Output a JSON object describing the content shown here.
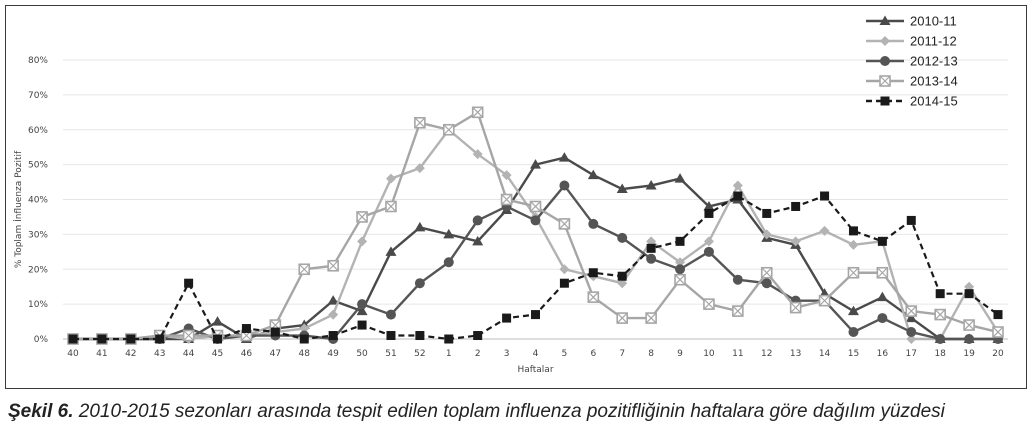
{
  "caption": {
    "label": "Şekil 6.",
    "text": " 2010-2015 sezonları arasında tespit edilen toplam influenza pozitifliğinin haftalara göre dağılım yüzdesi"
  },
  "chart_data": {
    "type": "line",
    "title": "",
    "xlabel": "Haftalar",
    "ylabel": "% Toplam İnfluenza Pozitif",
    "categories": [
      "40",
      "41",
      "42",
      "43",
      "44",
      "45",
      "46",
      "47",
      "48",
      "49",
      "50",
      "51",
      "52",
      "1",
      "2",
      "3",
      "4",
      "5",
      "6",
      "7",
      "8",
      "9",
      "10",
      "11",
      "12",
      "13",
      "14",
      "15",
      "16",
      "17",
      "18",
      "19",
      "20"
    ],
    "ylim": [
      0,
      80
    ],
    "yticks": [
      "0%",
      "10%",
      "20%",
      "30%",
      "40%",
      "50%",
      "60%",
      "70%",
      "80%"
    ],
    "grid": true,
    "legend_position": "top-right",
    "series": [
      {
        "name": "2010-11",
        "marker": "triangle",
        "color": "#4a4a4a",
        "dash": "solid",
        "values": [
          0,
          0,
          0,
          0,
          0,
          5,
          0,
          3,
          4,
          11,
          8,
          25,
          32,
          30,
          28,
          37,
          50,
          52,
          47,
          43,
          44,
          46,
          38,
          40,
          29,
          27,
          13,
          8,
          12,
          6,
          0,
          0,
          0
        ]
      },
      {
        "name": "2011-12",
        "marker": "diamond",
        "color": "#b3b3b3",
        "dash": "solid",
        "values": [
          0,
          0,
          0,
          1,
          0,
          1,
          1,
          2,
          3,
          7,
          28,
          46,
          49,
          60,
          53,
          47,
          35,
          20,
          18,
          16,
          28,
          22,
          28,
          44,
          30,
          28,
          31,
          27,
          28,
          0,
          0,
          15,
          2
        ]
      },
      {
        "name": "2012-13",
        "marker": "circle",
        "color": "#555555",
        "dash": "solid",
        "values": [
          0,
          0,
          0,
          0,
          3,
          0,
          1,
          1,
          1,
          0,
          10,
          7,
          16,
          22,
          34,
          38,
          34,
          44,
          33,
          29,
          23,
          20,
          25,
          17,
          16,
          11,
          11,
          2,
          6,
          2,
          0,
          0,
          0
        ]
      },
      {
        "name": "2013-14",
        "marker": "square",
        "color": "#a6a6a6",
        "dash": "solid",
        "values": [
          0,
          0,
          0,
          1,
          1,
          1,
          1,
          4,
          20,
          21,
          35,
          38,
          62,
          60,
          65,
          40,
          38,
          33,
          12,
          6,
          6,
          17,
          10,
          8,
          19,
          9,
          11,
          19,
          19,
          8,
          7,
          4,
          2
        ]
      },
      {
        "name": "2014-15",
        "marker": "square-filled",
        "color": "#1a1a1a",
        "dash": "dashed",
        "values": [
          0,
          0,
          0,
          0,
          16,
          0,
          3,
          2,
          0,
          1,
          4,
          1,
          1,
          0,
          1,
          6,
          7,
          16,
          19,
          18,
          26,
          28,
          36,
          41,
          36,
          38,
          41,
          31,
          28,
          34,
          13,
          13,
          7
        ]
      }
    ]
  }
}
